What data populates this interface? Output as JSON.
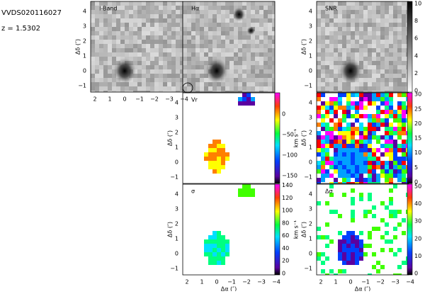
{
  "header": {
    "object": "VVDS020116027",
    "redshift": "z = 1.5302"
  },
  "axes": {
    "xlabel": "Δα (″)",
    "ylabel": "Δδ (″)",
    "xticks": [
      "2",
      "1",
      "0",
      "−1",
      "−2",
      "−3",
      "−4"
    ],
    "yticks": [
      "4",
      "3",
      "2",
      "1",
      "0",
      "−1"
    ]
  },
  "panels": [
    {
      "label": "I-Band"
    },
    {
      "label": "Hα"
    },
    {
      "label": "SNR"
    },
    {
      "label": "Vr"
    },
    {
      "label": "σ"
    },
    {
      "label": "Δσ"
    }
  ],
  "colorbars": [
    {
      "ticks": [
        "0",
        "2",
        "4",
        "6",
        "8",
        "10"
      ]
    },
    {
      "ticks": [
        "0",
        "−50",
        "−100",
        "−150"
      ],
      "unit": "km s⁻¹"
    },
    {
      "ticks": [
        "0",
        "20",
        "40",
        "60",
        "80",
        "100",
        "120",
        "140"
      ],
      "unit": "km s⁻¹"
    },
    {
      "ticks": [
        "0",
        "5",
        "10",
        "15",
        "20",
        "25",
        "30"
      ],
      "unit": "km s⁻¹"
    },
    {
      "ticks": [
        "0",
        "10",
        "20",
        "30",
        "40",
        "50"
      ],
      "unit": "km s⁻¹"
    }
  ]
}
